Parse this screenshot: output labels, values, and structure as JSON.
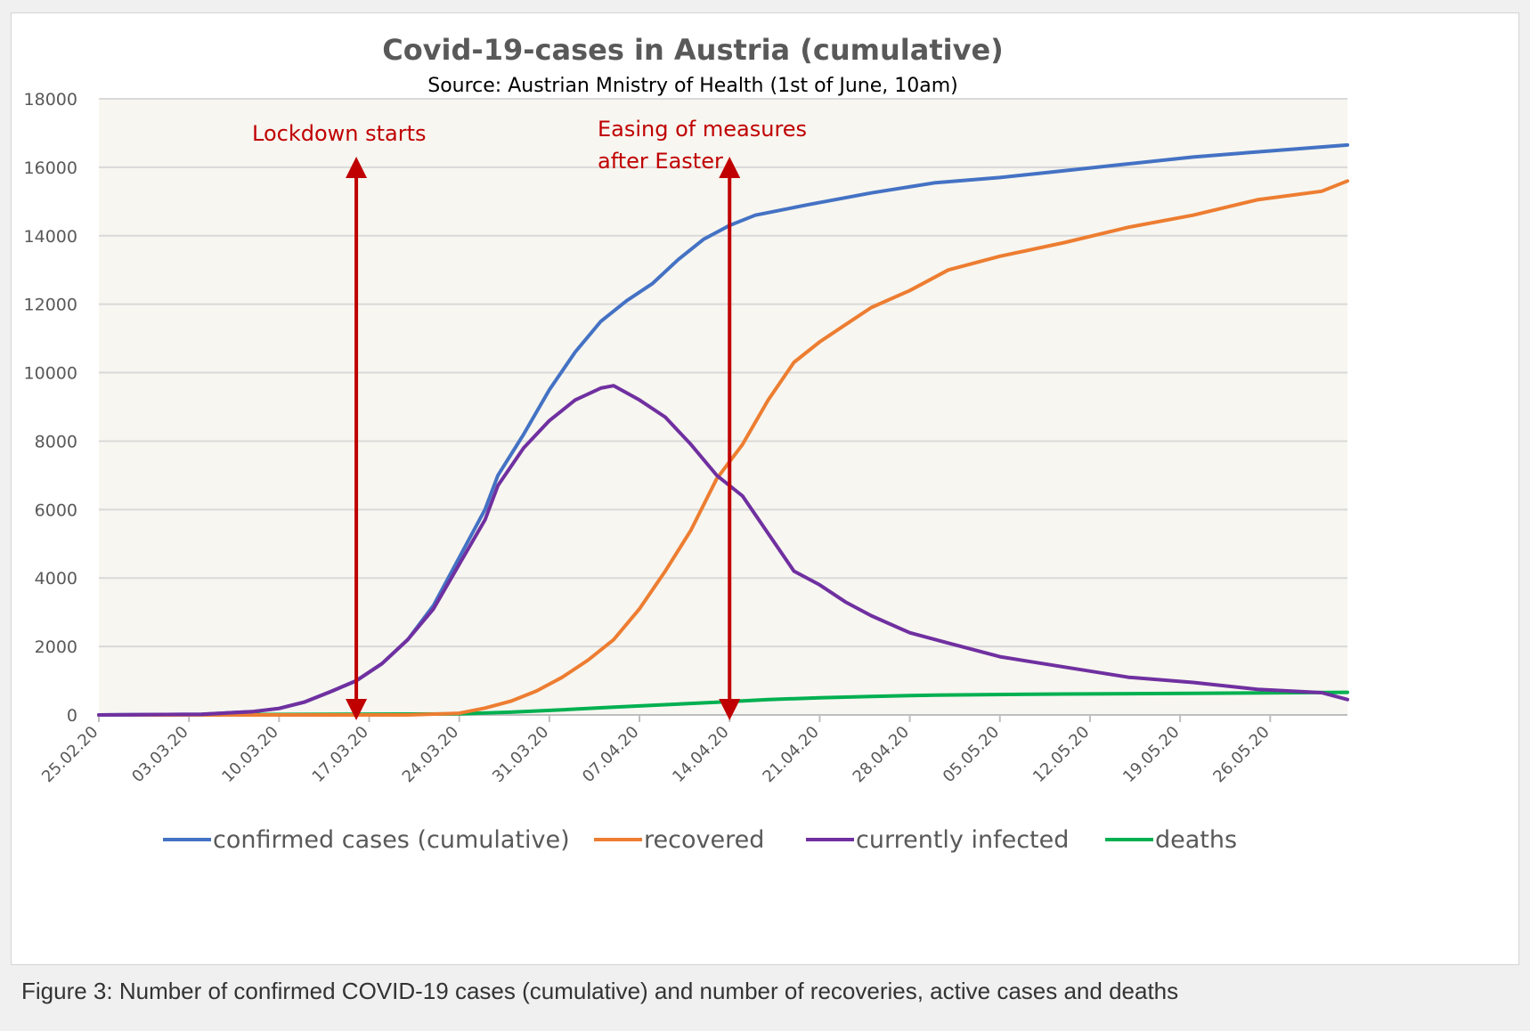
{
  "caption": "Figure 3: Number of confirmed COVID-19 cases (cumulative) and number of recoveries, active cases and deaths",
  "chart_data": {
    "type": "line",
    "title": "Covid-19-cases in Austria (cumulative)",
    "subtitle": "Source: Austrian Mnistry of Health (1st of June, 10am)",
    "xlabel": "",
    "ylabel": "",
    "ylim": [
      0,
      18000
    ],
    "y_ticks": [
      0,
      2000,
      4000,
      6000,
      8000,
      10000,
      12000,
      14000,
      16000,
      18000
    ],
    "x_tick_labels": [
      "25.02.20",
      "03.03.20",
      "10.03.20",
      "17.03.20",
      "24.03.20",
      "31.03.20",
      "07.04.20",
      "14.04.20",
      "21.04.20",
      "28.04.20",
      "05.05.20",
      "12.05.20",
      "19.05.20",
      "26.05.20"
    ],
    "x_range": [
      "2020-02-25",
      "2020-06-01"
    ],
    "grid": "horizontal",
    "plot_background": "#f7f6f0",
    "legend_position": "bottom",
    "annotations": [
      {
        "text_lines": [
          "Lockdown starts"
        ],
        "date": "2020-03-16",
        "color": "#c00000"
      },
      {
        "text_lines": [
          "Easing of measures",
          "after Easter"
        ],
        "date": "2020-04-14",
        "color": "#c00000"
      }
    ],
    "series": [
      {
        "name": "confirmed cases (cumulative)",
        "color": "#4472c4",
        "points": [
          [
            "2020-02-25",
            0
          ],
          [
            "2020-03-04",
            20
          ],
          [
            "2020-03-08",
            100
          ],
          [
            "2020-03-10",
            190
          ],
          [
            "2020-03-12",
            380
          ],
          [
            "2020-03-14",
            680
          ],
          [
            "2020-03-16",
            1000
          ],
          [
            "2020-03-18",
            1500
          ],
          [
            "2020-03-20",
            2200
          ],
          [
            "2020-03-22",
            3200
          ],
          [
            "2020-03-24",
            4600
          ],
          [
            "2020-03-26",
            6000
          ],
          [
            "2020-03-27",
            7000
          ],
          [
            "2020-03-29",
            8200
          ],
          [
            "2020-03-31",
            9500
          ],
          [
            "2020-04-02",
            10600
          ],
          [
            "2020-04-04",
            11500
          ],
          [
            "2020-04-06",
            12100
          ],
          [
            "2020-04-08",
            12600
          ],
          [
            "2020-04-10",
            13300
          ],
          [
            "2020-04-12",
            13900
          ],
          [
            "2020-04-14",
            14300
          ],
          [
            "2020-04-16",
            14600
          ],
          [
            "2020-04-20",
            14900
          ],
          [
            "2020-04-25",
            15250
          ],
          [
            "2020-04-30",
            15550
          ],
          [
            "2020-05-05",
            15700
          ],
          [
            "2020-05-10",
            15900
          ],
          [
            "2020-05-15",
            16100
          ],
          [
            "2020-05-20",
            16300
          ],
          [
            "2020-05-25",
            16450
          ],
          [
            "2020-06-01",
            16650
          ]
        ]
      },
      {
        "name": "recovered",
        "color": "#ed7d31",
        "points": [
          [
            "2020-02-25",
            0
          ],
          [
            "2020-03-20",
            0
          ],
          [
            "2020-03-24",
            50
          ],
          [
            "2020-03-26",
            200
          ],
          [
            "2020-03-28",
            400
          ],
          [
            "2020-03-30",
            700
          ],
          [
            "2020-04-01",
            1100
          ],
          [
            "2020-04-03",
            1600
          ],
          [
            "2020-04-05",
            2200
          ],
          [
            "2020-04-07",
            3100
          ],
          [
            "2020-04-09",
            4200
          ],
          [
            "2020-04-11",
            5400
          ],
          [
            "2020-04-13",
            6900
          ],
          [
            "2020-04-15",
            7900
          ],
          [
            "2020-04-17",
            9200
          ],
          [
            "2020-04-19",
            10300
          ],
          [
            "2020-04-21",
            10900
          ],
          [
            "2020-04-23",
            11400
          ],
          [
            "2020-04-25",
            11900
          ],
          [
            "2020-04-28",
            12400
          ],
          [
            "2020-05-01",
            13000
          ],
          [
            "2020-05-05",
            13400
          ],
          [
            "2020-05-10",
            13800
          ],
          [
            "2020-05-15",
            14250
          ],
          [
            "2020-05-20",
            14600
          ],
          [
            "2020-05-25",
            15050
          ],
          [
            "2020-05-30",
            15300
          ],
          [
            "2020-06-01",
            15600
          ]
        ]
      },
      {
        "name": "currently infected",
        "color": "#7030a0",
        "points": [
          [
            "2020-02-25",
            0
          ],
          [
            "2020-03-04",
            20
          ],
          [
            "2020-03-08",
            100
          ],
          [
            "2020-03-10",
            190
          ],
          [
            "2020-03-12",
            380
          ],
          [
            "2020-03-14",
            680
          ],
          [
            "2020-03-16",
            1000
          ],
          [
            "2020-03-18",
            1500
          ],
          [
            "2020-03-20",
            2200
          ],
          [
            "2020-03-22",
            3100
          ],
          [
            "2020-03-24",
            4400
          ],
          [
            "2020-03-26",
            5700
          ],
          [
            "2020-03-27",
            6700
          ],
          [
            "2020-03-29",
            7800
          ],
          [
            "2020-03-31",
            8600
          ],
          [
            "2020-04-02",
            9200
          ],
          [
            "2020-04-04",
            9550
          ],
          [
            "2020-04-05",
            9620
          ],
          [
            "2020-04-07",
            9200
          ],
          [
            "2020-04-09",
            8700
          ],
          [
            "2020-04-11",
            7900
          ],
          [
            "2020-04-13",
            7000
          ],
          [
            "2020-04-15",
            6400
          ],
          [
            "2020-04-17",
            5300
          ],
          [
            "2020-04-19",
            4200
          ],
          [
            "2020-04-21",
            3800
          ],
          [
            "2020-04-23",
            3300
          ],
          [
            "2020-04-25",
            2900
          ],
          [
            "2020-04-28",
            2400
          ],
          [
            "2020-05-01",
            2100
          ],
          [
            "2020-05-05",
            1700
          ],
          [
            "2020-05-10",
            1400
          ],
          [
            "2020-05-15",
            1100
          ],
          [
            "2020-05-20",
            950
          ],
          [
            "2020-05-25",
            750
          ],
          [
            "2020-05-30",
            650
          ],
          [
            "2020-06-01",
            450
          ]
        ]
      },
      {
        "name": "deaths",
        "color": "#00b050",
        "points": [
          [
            "2020-02-25",
            0
          ],
          [
            "2020-03-24",
            30
          ],
          [
            "2020-03-28",
            80
          ],
          [
            "2020-04-01",
            150
          ],
          [
            "2020-04-05",
            230
          ],
          [
            "2020-04-09",
            300
          ],
          [
            "2020-04-13",
            370
          ],
          [
            "2020-04-17",
            450
          ],
          [
            "2020-04-21",
            500
          ],
          [
            "2020-04-25",
            540
          ],
          [
            "2020-04-30",
            580
          ],
          [
            "2020-05-10",
            610
          ],
          [
            "2020-05-20",
            630
          ],
          [
            "2020-06-01",
            660
          ]
        ]
      }
    ]
  }
}
